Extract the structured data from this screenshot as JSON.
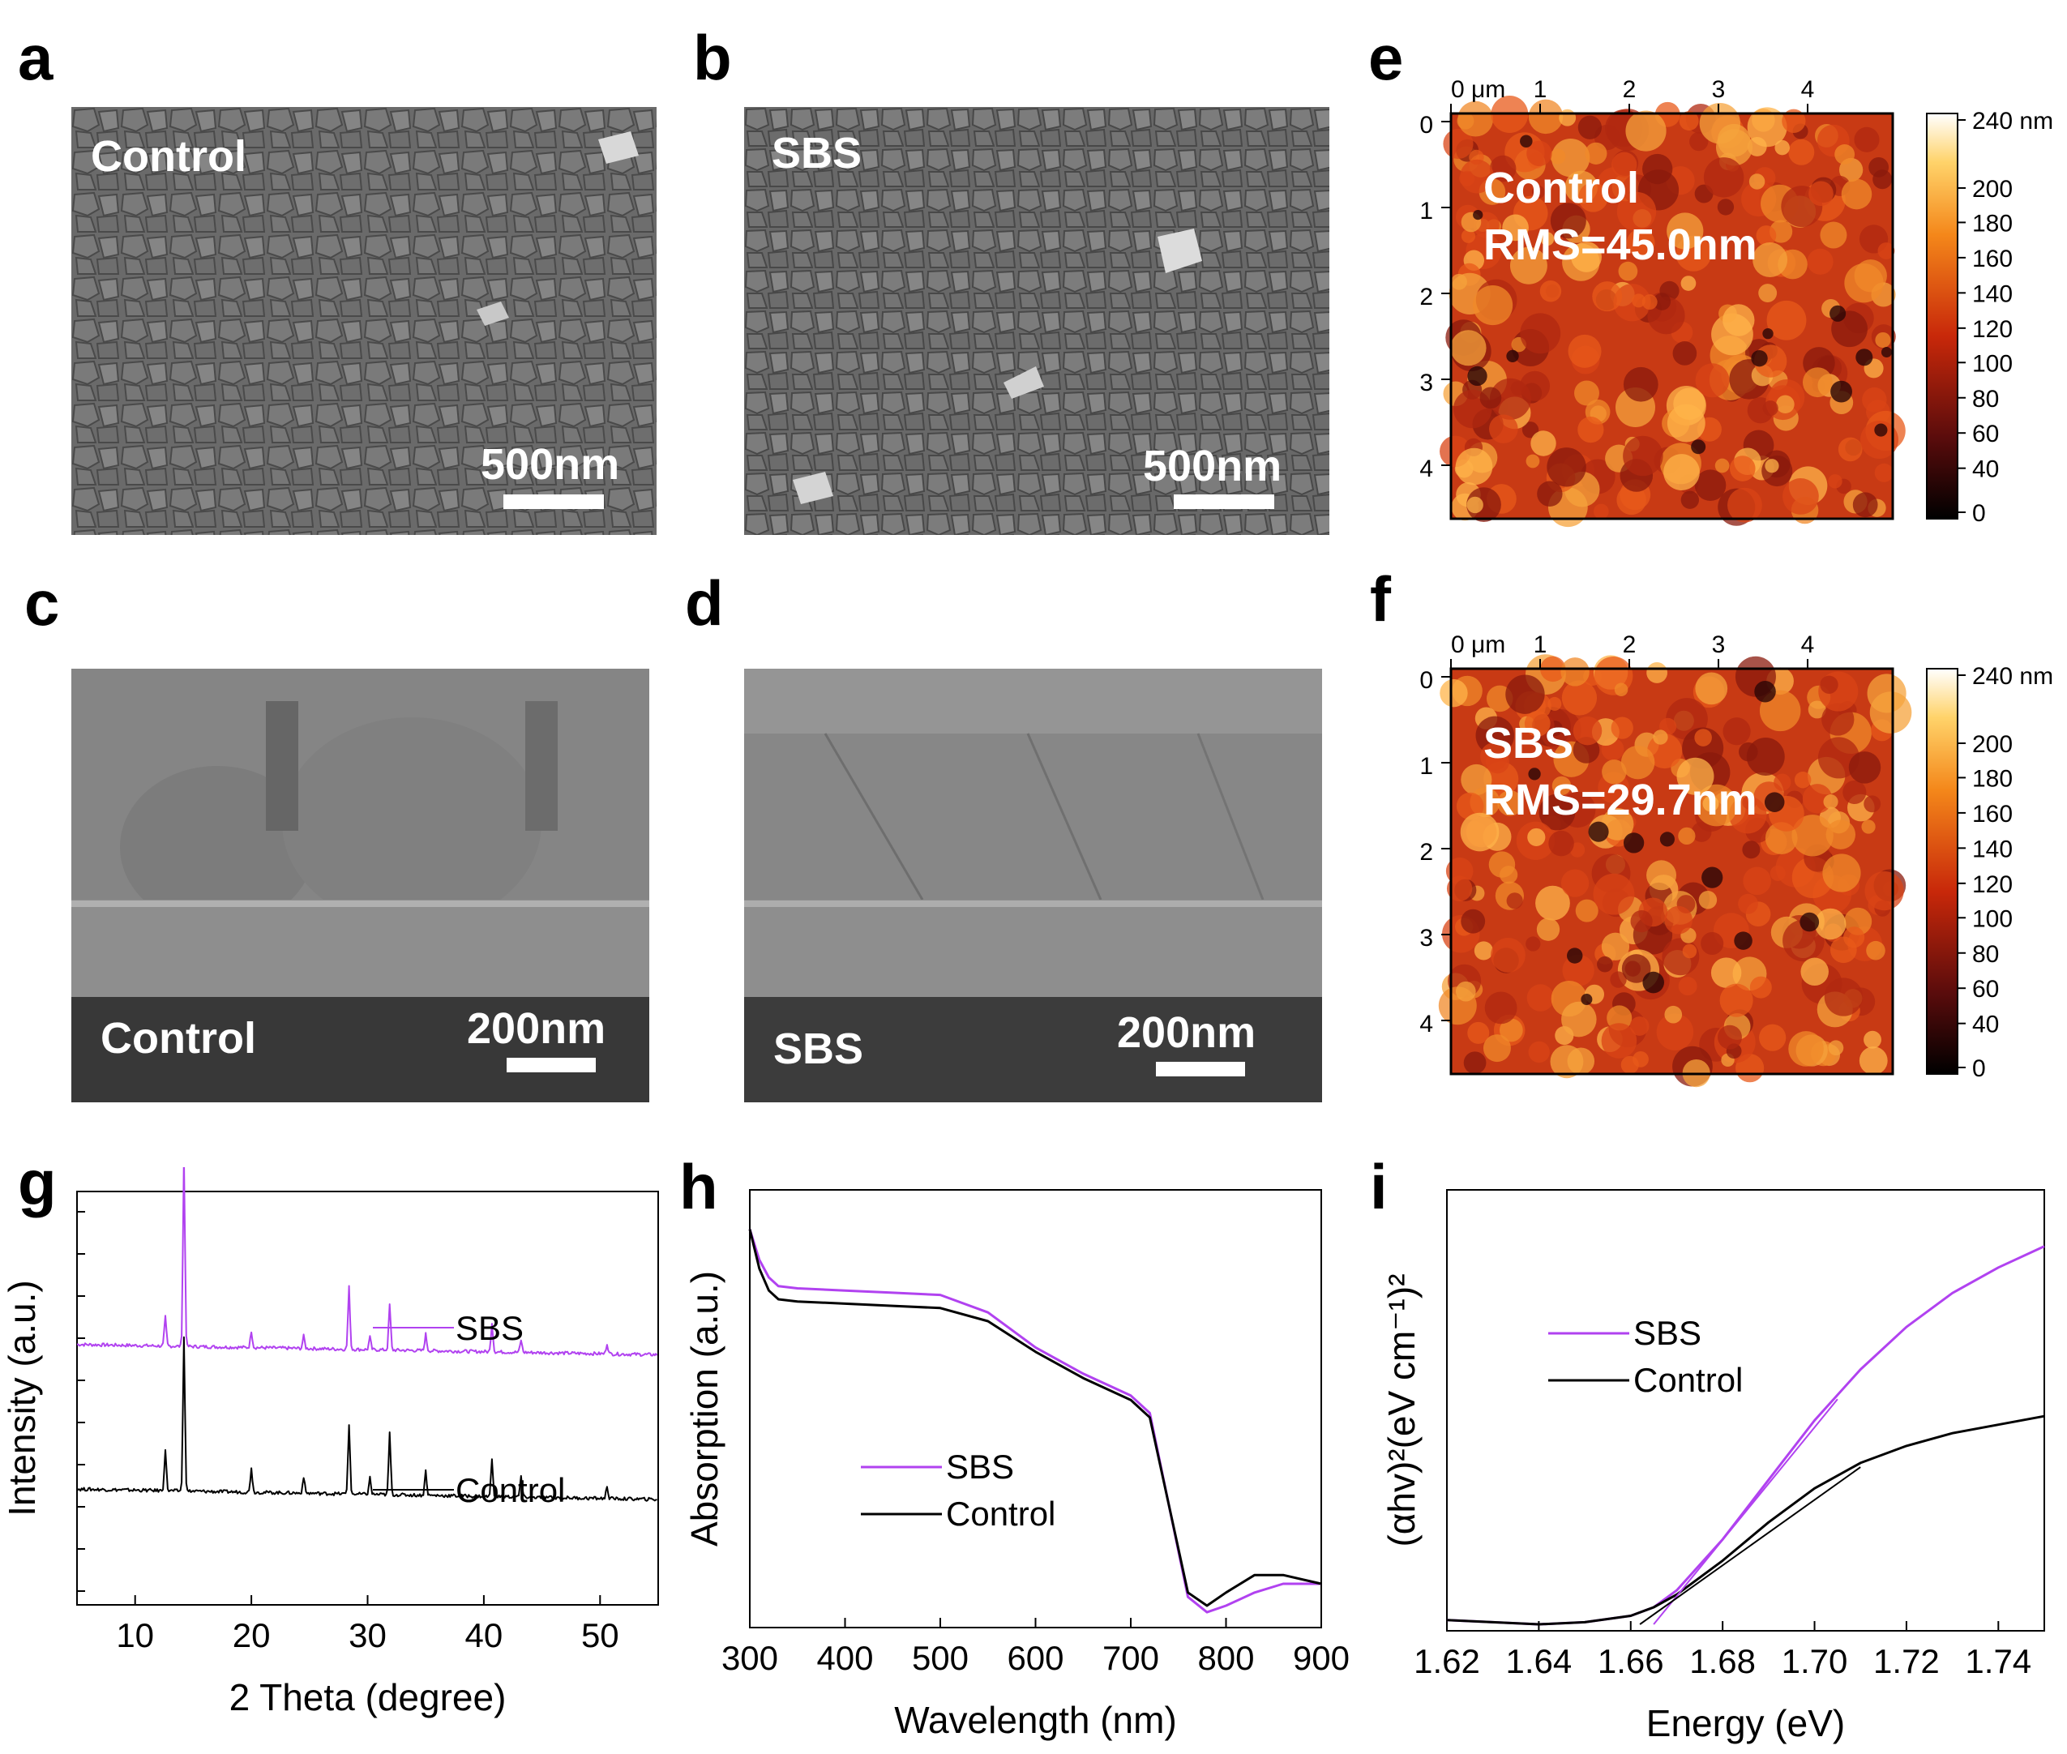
{
  "panels": {
    "a": {
      "letter": "a",
      "label": "Control",
      "scale": "500nm"
    },
    "b": {
      "letter": "b",
      "label": "SBS",
      "scale": "500nm"
    },
    "c": {
      "letter": "c",
      "label": "Control",
      "scale": "200nm"
    },
    "d": {
      "letter": "d",
      "label": "SBS",
      "scale": "200nm"
    },
    "e": {
      "letter": "e",
      "label": "Control",
      "rms": "RMS=45.0nm"
    },
    "f": {
      "letter": "f",
      "label": "SBS",
      "rms": "RMS=29.7nm"
    },
    "g": {
      "letter": "g"
    },
    "h": {
      "letter": "h"
    },
    "i": {
      "letter": "i"
    }
  },
  "afm_axes": {
    "x_ticks": [
      "0 μm",
      "1",
      "2",
      "3",
      "4"
    ],
    "y_ticks": [
      "0",
      "1",
      "2",
      "3",
      "4"
    ],
    "colorbar_ticks": [
      "240 nm",
      "200",
      "180",
      "160",
      "140",
      "120",
      "100",
      "80",
      "60",
      "40",
      "0"
    ]
  },
  "colors": {
    "sbs": "#b142f0",
    "control": "#000000",
    "sem_gray": "#6e6e6e"
  },
  "chart_data": [
    {
      "id": "g",
      "type": "line",
      "title": "",
      "xlabel": "2 Theta (degree)",
      "ylabel": "Intensity (a.u.)",
      "xlim": [
        5,
        55
      ],
      "xticks": [
        "10",
        "20",
        "30",
        "40",
        "50"
      ],
      "series": [
        {
          "name": "SBS",
          "baseline": 0.63,
          "peaks": [
            [
              12.6,
              0.07
            ],
            [
              14.2,
              0.46
            ],
            [
              20.0,
              0.04
            ],
            [
              24.5,
              0.03
            ],
            [
              28.4,
              0.15
            ],
            [
              30.2,
              0.03
            ],
            [
              31.9,
              0.11
            ],
            [
              35.0,
              0.04
            ],
            [
              40.7,
              0.07
            ],
            [
              43.2,
              0.03
            ],
            [
              50.6,
              0.025
            ]
          ]
        },
        {
          "name": "Control",
          "baseline": 0.28,
          "peaks": [
            [
              12.6,
              0.1
            ],
            [
              14.2,
              0.37
            ],
            [
              20.0,
              0.06
            ],
            [
              24.5,
              0.04
            ],
            [
              28.4,
              0.17
            ],
            [
              30.2,
              0.04
            ],
            [
              31.9,
              0.15
            ],
            [
              35.0,
              0.06
            ],
            [
              40.7,
              0.09
            ],
            [
              43.2,
              0.05
            ],
            [
              50.6,
              0.03
            ]
          ]
        }
      ],
      "legend": [
        "SBS",
        "Control"
      ]
    },
    {
      "id": "h",
      "type": "line",
      "title": "",
      "xlabel": "Wavelength (nm)",
      "ylabel": "Absorption (a.u.)",
      "xlim": [
        300,
        900
      ],
      "xticks": [
        "300",
        "400",
        "500",
        "600",
        "700",
        "800",
        "900"
      ],
      "series": [
        {
          "name": "SBS",
          "x": [
            300,
            310,
            320,
            330,
            350,
            400,
            450,
            500,
            550,
            600,
            650,
            700,
            720,
            740,
            760,
            780,
            800,
            830,
            860,
            900
          ],
          "y": [
            0.91,
            0.84,
            0.8,
            0.78,
            0.775,
            0.77,
            0.765,
            0.76,
            0.72,
            0.64,
            0.58,
            0.53,
            0.49,
            0.28,
            0.07,
            0.035,
            0.05,
            0.08,
            0.1,
            0.1
          ]
        },
        {
          "name": "Control",
          "x": [
            300,
            310,
            320,
            330,
            350,
            400,
            450,
            500,
            550,
            600,
            650,
            700,
            720,
            740,
            760,
            780,
            800,
            830,
            860,
            900
          ],
          "y": [
            0.91,
            0.82,
            0.77,
            0.75,
            0.745,
            0.74,
            0.735,
            0.73,
            0.7,
            0.63,
            0.57,
            0.52,
            0.48,
            0.28,
            0.08,
            0.05,
            0.08,
            0.12,
            0.12,
            0.1
          ]
        }
      ],
      "legend": [
        "SBS",
        "Control"
      ]
    },
    {
      "id": "i",
      "type": "line",
      "title": "",
      "xlabel": "Energy (eV)",
      "ylabel": "(αhv)²(eV cm⁻¹)²",
      "xlim": [
        1.62,
        1.75
      ],
      "xticks": [
        "1.62",
        "1.64",
        "1.66",
        "1.68",
        "1.70",
        "1.72",
        "1.74"
      ],
      "series": [
        {
          "name": "SBS",
          "x": [
            1.62,
            1.64,
            1.65,
            1.66,
            1.665,
            1.67,
            1.68,
            1.69,
            1.7,
            1.71,
            1.72,
            1.73,
            1.74,
            1.75
          ],
          "y": [
            0.01,
            0.0,
            0.005,
            0.02,
            0.04,
            0.08,
            0.2,
            0.34,
            0.48,
            0.6,
            0.7,
            0.78,
            0.84,
            0.89
          ]
        },
        {
          "name": "Control",
          "x": [
            1.62,
            1.64,
            1.65,
            1.66,
            1.665,
            1.67,
            1.68,
            1.69,
            1.7,
            1.71,
            1.72,
            1.73,
            1.74,
            1.75
          ],
          "y": [
            0.01,
            0.0,
            0.005,
            0.02,
            0.04,
            0.07,
            0.15,
            0.24,
            0.32,
            0.38,
            0.42,
            0.45,
            0.47,
            0.49
          ]
        },
        {
          "name": "SBS fit",
          "x": [
            1.665,
            1.705
          ],
          "y": [
            0.0,
            0.53
          ]
        },
        {
          "name": "Control fit",
          "x": [
            1.662,
            1.71
          ],
          "y": [
            0.0,
            0.37
          ]
        }
      ],
      "legend": [
        "SBS",
        "Control"
      ]
    }
  ]
}
